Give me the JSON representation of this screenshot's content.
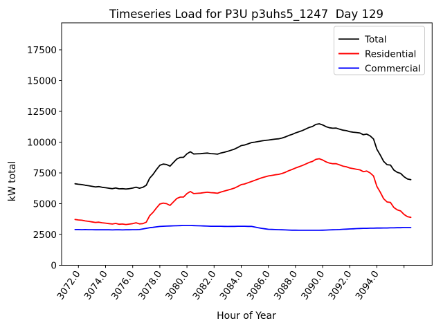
{
  "figure": {
    "title": "Timeseries Load for P3U p3uhs5_1247  Day 129",
    "xlabel": "Hour of Year",
    "ylabel": "kW total",
    "background_color": "#ffffff"
  },
  "axes": {
    "xtick_labels": [
      "3072.0",
      "3074.0",
      "3076.0",
      "3078.0",
      "3080.0",
      "3082.0",
      "3084.0",
      "3086.0",
      "3088.0",
      "3090.0",
      "3092.0",
      "3094.0"
    ],
    "xtick_unlabeled": 3096,
    "ytick_labels": [
      "0",
      "2500",
      "5000",
      "7500",
      "10000",
      "12500",
      "15000",
      "17500"
    ],
    "spine_color": "#000000"
  },
  "legend": {
    "border_color": "#cccccc",
    "entries": [
      {
        "label": "Total",
        "color": "#000000"
      },
      {
        "label": "Residential",
        "color": "#ff0000"
      },
      {
        "label": "Commercial",
        "color": "#0000ff"
      }
    ]
  },
  "chart_data": {
    "type": "line",
    "title": "Timeseries Load for P3U p3uhs5_1247  Day 129",
    "xlabel": "Hour of Year",
    "ylabel": "kW total",
    "xlim": [
      3070.8,
      3098.1
    ],
    "ylim": [
      0,
      19700
    ],
    "grid": false,
    "legend_position": "upper right",
    "x": {
      "start": 3071.75,
      "step": 0.25,
      "count": 100
    },
    "series": [
      {
        "name": "Total",
        "color": "#000000",
        "values": [
          6620,
          6580,
          6550,
          6500,
          6460,
          6410,
          6360,
          6390,
          6330,
          6300,
          6260,
          6220,
          6280,
          6210,
          6220,
          6190,
          6220,
          6270,
          6340,
          6260,
          6330,
          6500,
          7070,
          7380,
          7770,
          8120,
          8220,
          8180,
          8050,
          8340,
          8630,
          8760,
          8770,
          9050,
          9220,
          9040,
          9050,
          9060,
          9090,
          9110,
          9070,
          9050,
          9020,
          9120,
          9180,
          9250,
          9340,
          9430,
          9570,
          9720,
          9770,
          9860,
          9960,
          10000,
          10050,
          10100,
          10140,
          10170,
          10210,
          10250,
          10270,
          10330,
          10420,
          10540,
          10630,
          10750,
          10840,
          10940,
          11060,
          11190,
          11270,
          11440,
          11490,
          11400,
          11260,
          11170,
          11130,
          11140,
          11050,
          10970,
          10930,
          10850,
          10810,
          10780,
          10740,
          10600,
          10650,
          10510,
          10260,
          9420,
          8950,
          8430,
          8170,
          8140,
          7730,
          7550,
          7460,
          7190,
          7010,
          6950
        ]
      },
      {
        "name": "Residential",
        "color": "#ff0000",
        "values": [
          3720,
          3680,
          3660,
          3600,
          3570,
          3520,
          3480,
          3500,
          3450,
          3420,
          3380,
          3350,
          3400,
          3330,
          3350,
          3310,
          3340,
          3380,
          3450,
          3360,
          3380,
          3500,
          4020,
          4300,
          4650,
          4970,
          5050,
          5000,
          4860,
          5140,
          5420,
          5540,
          5540,
          5820,
          5990,
          5820,
          5840,
          5860,
          5900,
          5930,
          5900,
          5880,
          5850,
          5950,
          6020,
          6100,
          6180,
          6270,
          6400,
          6550,
          6600,
          6700,
          6800,
          6900,
          7000,
          7100,
          7180,
          7250,
          7300,
          7350,
          7380,
          7450,
          7550,
          7680,
          7780,
          7900,
          8000,
          8100,
          8220,
          8350,
          8430,
          8600,
          8650,
          8550,
          8400,
          8300,
          8250,
          8250,
          8150,
          8050,
          8000,
          7900,
          7850,
          7800,
          7750,
          7600,
          7650,
          7500,
          7250,
          6400,
          5930,
          5400,
          5140,
          5100,
          4690,
          4500,
          4410,
          4130,
          3950,
          3890
        ]
      },
      {
        "name": "Commercial",
        "color": "#0000ff",
        "values": [
          2900,
          2900,
          2890,
          2900,
          2890,
          2890,
          2880,
          2890,
          2880,
          2880,
          2880,
          2870,
          2880,
          2880,
          2870,
          2880,
          2880,
          2890,
          2890,
          2900,
          2950,
          3000,
          3050,
          3080,
          3120,
          3150,
          3170,
          3180,
          3190,
          3200,
          3210,
          3220,
          3230,
          3230,
          3230,
          3220,
          3210,
          3200,
          3190,
          3180,
          3170,
          3170,
          3170,
          3170,
          3160,
          3150,
          3160,
          3160,
          3170,
          3170,
          3170,
          3160,
          3160,
          3100,
          3050,
          3000,
          2960,
          2920,
          2910,
          2900,
          2890,
          2880,
          2870,
          2860,
          2850,
          2850,
          2840,
          2840,
          2840,
          2840,
          2840,
          2840,
          2840,
          2850,
          2860,
          2870,
          2880,
          2890,
          2900,
          2920,
          2930,
          2950,
          2960,
          2980,
          2990,
          3000,
          3000,
          3010,
          3010,
          3020,
          3020,
          3030,
          3030,
          3040,
          3040,
          3050,
          3050,
          3060,
          3060,
          3060
        ]
      }
    ]
  }
}
